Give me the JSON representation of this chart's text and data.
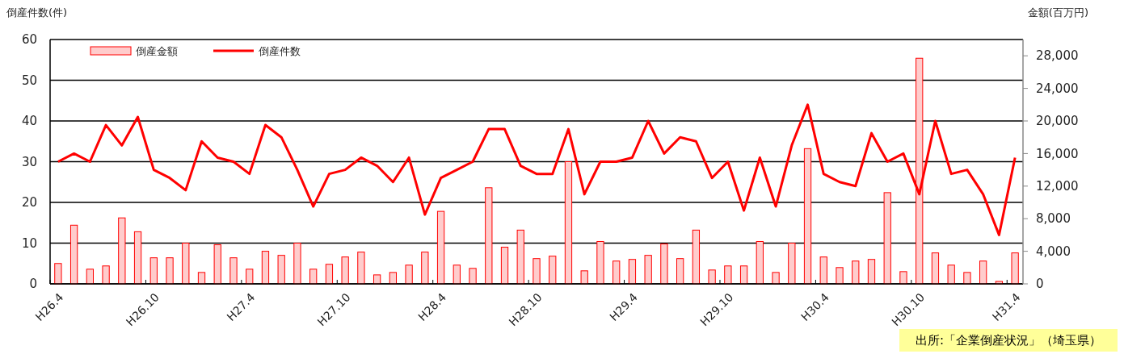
{
  "chart_data": {
    "type": "bar",
    "ylabel": "倒産件数(件)",
    "y2label": "金額(百万円)",
    "categories": [
      "H26.4",
      null,
      null,
      null,
      null,
      null,
      "H26.10",
      null,
      null,
      null,
      null,
      null,
      "H27.4",
      null,
      null,
      null,
      null,
      null,
      "H27.10",
      null,
      null,
      null,
      null,
      null,
      "H28.4",
      null,
      null,
      null,
      null,
      null,
      "H28.10",
      null,
      null,
      null,
      null,
      null,
      "H29.4",
      null,
      null,
      null,
      null,
      null,
      "H29.10",
      null,
      null,
      null,
      null,
      null,
      "H30.4",
      null,
      null,
      null,
      null,
      null,
      "H30.10",
      null,
      null,
      null,
      null,
      null,
      "H31.4"
    ],
    "series": [
      {
        "name": "倒産金額",
        "axis": "y2",
        "color": "#ffcccc",
        "values": [
          2500,
          7200,
          1800,
          2200,
          8100,
          6400,
          3200,
          3200,
          5000,
          1400,
          4800,
          3200,
          1800,
          4000,
          3500,
          5000,
          1800,
          2400,
          3300,
          3900,
          1100,
          1400,
          2300,
          3900,
          8900,
          2300,
          1900,
          11800,
          4500,
          6600,
          3100,
          3400,
          15000,
          1600,
          5200,
          2800,
          3000,
          3500,
          4900,
          3100,
          6600,
          1700,
          2200,
          2200,
          5200,
          1400,
          5000,
          16600,
          3300,
          2000,
          2800,
          3000,
          11200,
          1500,
          27700,
          3800,
          2300,
          1400,
          2800,
          300,
          3800
        ]
      },
      {
        "name": "倒産件数",
        "type": "line",
        "color": "#ff0000",
        "values": [
          30,
          32,
          30,
          39,
          34,
          41,
          28,
          26,
          23,
          35,
          31,
          30,
          27,
          39,
          36,
          28,
          19,
          27,
          28,
          31,
          29,
          25,
          31,
          17,
          26,
          28,
          30,
          38,
          38,
          29,
          27,
          27,
          38,
          22,
          30,
          30,
          31,
          40,
          32,
          36,
          35,
          26,
          30,
          18,
          31,
          19,
          34,
          44,
          27,
          25,
          24,
          37,
          30,
          32,
          22,
          40,
          27,
          28,
          22,
          12,
          31
        ]
      }
    ],
    "ylim": [
      0,
      60
    ],
    "yticks": [
      0,
      10,
      20,
      30,
      40,
      50,
      60
    ],
    "y2lim": [
      0,
      30000
    ],
    "y2ticks": [
      {
        "value": 0,
        "label": "0"
      },
      {
        "value": 4000,
        "label": "4,000"
      },
      {
        "value": 8000,
        "label": "8,000"
      },
      {
        "value": 12000,
        "label": "12,000"
      },
      {
        "value": 16000,
        "label": "16,000"
      },
      {
        "value": 20000,
        "label": "20,000"
      },
      {
        "value": 24000,
        "label": "24,000"
      },
      {
        "value": 28000,
        "label": "28,000"
      }
    ],
    "grid": "y",
    "legend": "top left",
    "marker": "none",
    "line_style": "solid",
    "annotations": [
      "出所:「企業倒産状況」（埼玉県）"
    ]
  }
}
